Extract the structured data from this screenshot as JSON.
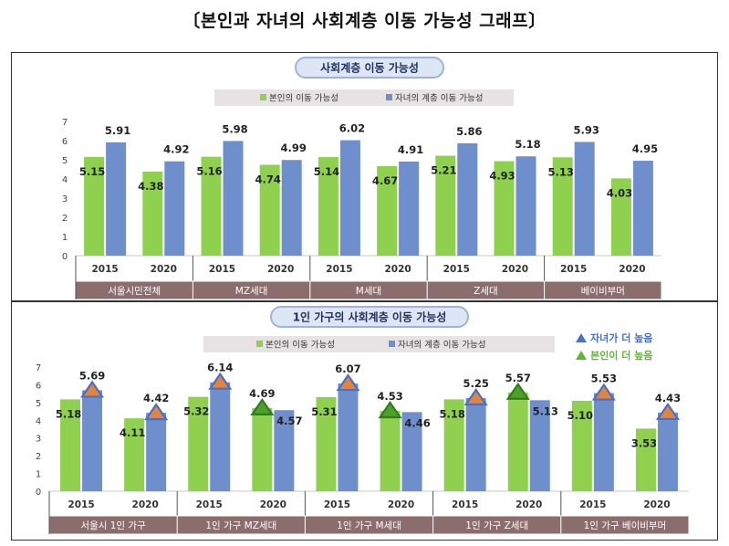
{
  "page_title": "〔본인과 자녀의 사회계층 이동 가능성 그래프〕",
  "chart_data": [
    {
      "type": "bar",
      "title": "사회계층 이동 가능성",
      "ylim": [
        0,
        7
      ],
      "yticks": [
        0,
        1,
        2,
        3,
        4,
        5,
        6,
        7
      ],
      "grid": false,
      "legend_position": "top",
      "groups": [
        "서울시민전체",
        "MZ세대",
        "M세대",
        "Z세대",
        "베이비부머"
      ],
      "years": [
        "2015",
        "2020"
      ],
      "series": [
        {
          "name": "본인의 이동 가능성",
          "color": "#8fd14f",
          "values": [
            [
              5.15,
              4.38
            ],
            [
              5.16,
              4.74
            ],
            [
              5.14,
              4.67
            ],
            [
              5.21,
              4.93
            ],
            [
              5.13,
              4.03
            ]
          ]
        },
        {
          "name": "자녀의 계층 이동 가능성",
          "color": "#6f8fcc",
          "values": [
            [
              5.91,
              4.92
            ],
            [
              5.98,
              4.99
            ],
            [
              6.02,
              4.91
            ],
            [
              5.86,
              5.18
            ],
            [
              5.93,
              4.95
            ]
          ]
        }
      ]
    },
    {
      "type": "bar",
      "title": "1인 가구의 사회계층 이동 가능성",
      "ylim": [
        0,
        7
      ],
      "yticks": [
        0,
        1,
        2,
        3,
        4,
        5,
        6,
        7
      ],
      "grid": false,
      "legend_position": "top",
      "groups": [
        "서울시 1인 가구",
        "1인 가구 MZ세대",
        "1인 가구 M세대",
        "1인 가구 Z세대",
        "1인 가구 베이비부머"
      ],
      "years": [
        "2015",
        "2020"
      ],
      "series": [
        {
          "name": "본인의 이동 가능성",
          "color": "#8fd14f",
          "values": [
            [
              5.18,
              4.11
            ],
            [
              5.32,
              4.69
            ],
            [
              5.31,
              4.53
            ],
            [
              5.18,
              5.57
            ],
            [
              5.1,
              3.53
            ]
          ]
        },
        {
          "name": "자녀의 계층 이동 가능성",
          "color": "#6f8fcc",
          "values": [
            [
              5.69,
              4.42
            ],
            [
              6.14,
              4.57
            ],
            [
              6.07,
              4.46
            ],
            [
              5.25,
              5.13
            ],
            [
              5.53,
              4.43
            ]
          ]
        }
      ],
      "marker_legend": [
        {
          "label": "자녀가 더 높음",
          "color": "#4a6fc4"
        },
        {
          "label": "본인이 더 높음",
          "color": "#5fb832"
        }
      ]
    }
  ]
}
